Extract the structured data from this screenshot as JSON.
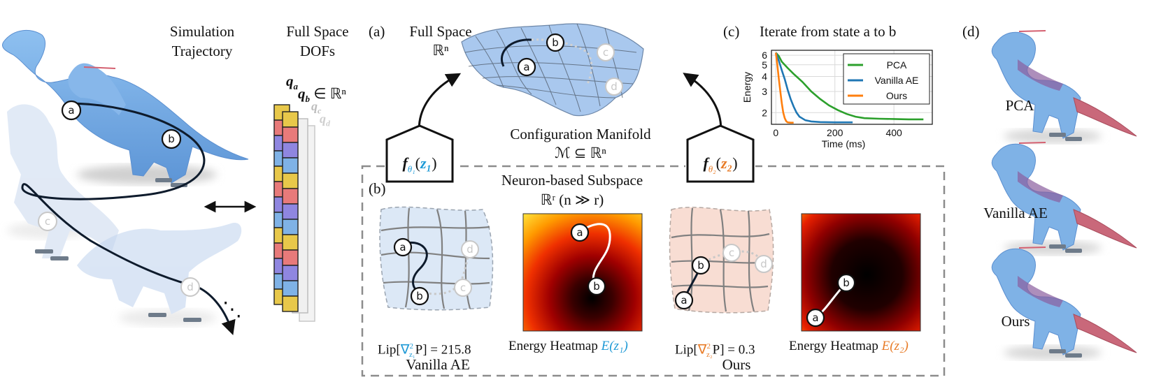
{
  "panel_left": {
    "sim_title": [
      "Simulation",
      "Trajectory"
    ],
    "dof_title": [
      "Full Space",
      "DOFs"
    ],
    "q_a": "q",
    "q_a_sub": "a",
    "q_b": "q",
    "q_b_sub": "b",
    "q_b_set": "∈ ℝⁿ",
    "q_c": "q",
    "q_c_sub": "c",
    "q_d": "q",
    "q_d_sub": "d",
    "ellipsis": "⋱"
  },
  "panel_a": {
    "tag": "(a)",
    "title_line1": "Full Space",
    "title_line2": "ℝⁿ",
    "manifold_line1": "Configuration Manifold",
    "manifold_line2": "ℳ ⊆ ℝⁿ",
    "decoder1": "f",
    "decoder1_sub": "θ₁",
    "decoder1_arg": "z₁",
    "decoder2": "f",
    "decoder2_sub": "θ₂",
    "decoder2_arg": "z₂"
  },
  "panel_b": {
    "tag": "(b)",
    "title_line1": "Neuron-based Subspace",
    "title_line2": "ℝʳ (n ≫ r)",
    "lip1_prefix": "Lip[",
    "lip1_nabla": "∇",
    "lip1_sub": "z₁",
    "lip1_suffix": "P] = 215.8",
    "heat1_prefix": "Energy Heatmap ",
    "heat1_var": "E(z₁)",
    "label1": "Vanilla AE",
    "lip2_prefix": "Lip[",
    "lip2_nabla": "∇",
    "lip2_sub": "z₂",
    "lip2_suffix": "P] = 0.3",
    "heat2_prefix": "Energy Heatmap ",
    "heat2_var": "E(z₂)",
    "label2": "Ours"
  },
  "panel_c": {
    "tag": "(c)",
    "title": "Iterate from state a to b"
  },
  "panel_d": {
    "tag": "(d)",
    "labels": [
      "PCA",
      "Vanilla AE",
      "Ours"
    ]
  },
  "nodes": {
    "a": "a",
    "b": "b",
    "c": "c",
    "d": "d"
  },
  "colors": {
    "pca": "#2ca02c",
    "vanilla": "#1f77b4",
    "ours": "#ff7f0e",
    "z1": "#1f9ad6",
    "z2": "#e87c28",
    "body_blue": "#7fb2e6",
    "body_red": "#c9687a",
    "manifold": "#a9c8ee"
  },
  "chart_data": {
    "type": "line",
    "title": "Iterate from state a to b",
    "xlabel": "Time (ms)",
    "ylabel": "Energy",
    "xlim": [
      -15,
      530
    ],
    "ylim": [
      1.6,
      6.6
    ],
    "yscale": "log",
    "xticks": [
      0,
      200,
      400
    ],
    "yticks": [
      2,
      3,
      4,
      5,
      6
    ],
    "grid": true,
    "legend": "top-right",
    "series": [
      {
        "name": "PCA",
        "color": "#2ca02c",
        "x": [
          0,
          10,
          20,
          40,
          60,
          90,
          120,
          150,
          180,
          210,
          240,
          270,
          300,
          350,
          400,
          450,
          500
        ],
        "y": [
          6.3,
          5.9,
          5.3,
          4.7,
          4.2,
          3.6,
          3.0,
          2.6,
          2.3,
          2.1,
          1.95,
          1.85,
          1.8,
          1.78,
          1.77,
          1.76,
          1.76
        ]
      },
      {
        "name": "Vanilla AE",
        "color": "#1f77b4",
        "x": [
          0,
          10,
          20,
          30,
          40,
          50,
          60,
          70,
          80,
          100,
          120,
          150,
          200,
          260
        ],
        "y": [
          6.3,
          5.4,
          4.5,
          3.8,
          3.1,
          2.6,
          2.25,
          2.0,
          1.85,
          1.73,
          1.69,
          1.67,
          1.66,
          1.66
        ]
      },
      {
        "name": "Ours",
        "color": "#ff7f0e",
        "x": [
          0,
          5,
          10,
          15,
          20,
          25,
          30,
          35,
          40,
          50,
          60
        ],
        "y": [
          6.3,
          5.0,
          3.8,
          3.0,
          2.4,
          2.0,
          1.8,
          1.7,
          1.66,
          1.65,
          1.65
        ]
      }
    ]
  }
}
